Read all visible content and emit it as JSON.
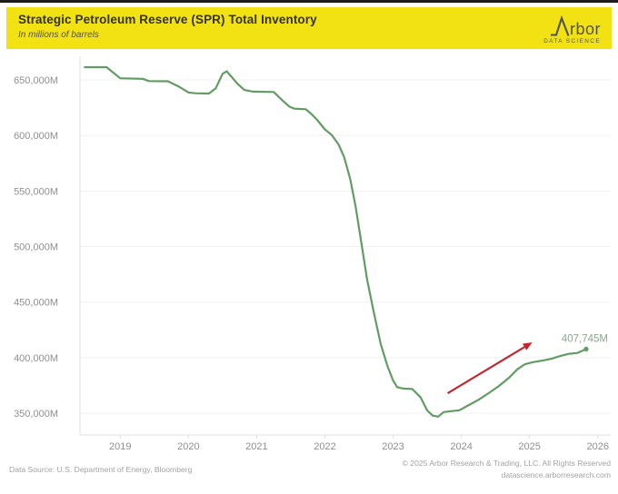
{
  "header": {
    "title": "Strategic Petroleum Reserve (SPR) Total Inventory",
    "subtitle": "In millions of barrels",
    "logo": {
      "brand": "Arbor",
      "text_after_mark": "rbor",
      "tagline": "DATA SCIENCE"
    }
  },
  "footer": {
    "source": "Data Source: U.S. Department of Energy, Bloomberg",
    "copyright": "© 2025 Arbor Research & Trading, LLC. All Rights Reserved",
    "website": "datascience.arborresearch.com"
  },
  "colors": {
    "header_bg": "#f2e214",
    "top_border": "#1c1c1c",
    "line": "#629c62",
    "end_dot": "#629c62",
    "end_label": "#8ca68c",
    "arrow": "#c1272d",
    "axis_text": "#8f8f8f",
    "gridline": "#f1f1f1",
    "axis_line": "#e0e0e0"
  },
  "chart_data": {
    "type": "line",
    "title": "Strategic Petroleum Reserve (SPR) Total Inventory",
    "subtitle": "In millions of barrels",
    "grid": "horizontal",
    "legend": "none",
    "xlim": [
      2018.41,
      2026.19
    ],
    "ylim": [
      330400,
      671300
    ],
    "x_ticks": [
      2019,
      2020,
      2021,
      2022,
      2023,
      2024,
      2025,
      2026
    ],
    "y_ticks": [
      {
        "value": 350000,
        "label": "350,000M"
      },
      {
        "value": 400000,
        "label": "400,000M"
      },
      {
        "value": 450000,
        "label": "450,000M"
      },
      {
        "value": 500000,
        "label": "500,000M"
      },
      {
        "value": 550000,
        "label": "550,000M"
      },
      {
        "value": 600000,
        "label": "600,000M"
      },
      {
        "value": 650000,
        "label": "650,000M"
      }
    ],
    "series": [
      {
        "name": "SPR Total Inventory",
        "points": [
          [
            2018.48,
            661500
          ],
          [
            2018.8,
            661500
          ],
          [
            2019.0,
            651500
          ],
          [
            2019.33,
            651000
          ],
          [
            2019.42,
            649000
          ],
          [
            2019.7,
            648800
          ],
          [
            2019.86,
            644000
          ],
          [
            2020.0,
            638800
          ],
          [
            2020.1,
            638000
          ],
          [
            2020.3,
            637800
          ],
          [
            2020.4,
            642500
          ],
          [
            2020.5,
            655500
          ],
          [
            2020.56,
            657800
          ],
          [
            2020.63,
            653000
          ],
          [
            2020.72,
            646500
          ],
          [
            2020.82,
            641000
          ],
          [
            2020.95,
            639500
          ],
          [
            2021.25,
            639200
          ],
          [
            2021.38,
            631500
          ],
          [
            2021.48,
            626000
          ],
          [
            2021.55,
            624200
          ],
          [
            2021.72,
            623600
          ],
          [
            2021.8,
            619500
          ],
          [
            2021.88,
            614500
          ],
          [
            2022.0,
            605500
          ],
          [
            2022.1,
            600500
          ],
          [
            2022.2,
            592000
          ],
          [
            2022.28,
            581000
          ],
          [
            2022.37,
            561000
          ],
          [
            2022.45,
            536000
          ],
          [
            2022.53,
            505000
          ],
          [
            2022.62,
            470000
          ],
          [
            2022.72,
            440000
          ],
          [
            2022.82,
            412000
          ],
          [
            2022.92,
            392000
          ],
          [
            2023.0,
            379500
          ],
          [
            2023.06,
            373500
          ],
          [
            2023.15,
            372200
          ],
          [
            2023.28,
            371800
          ],
          [
            2023.4,
            364500
          ],
          [
            2023.5,
            352500
          ],
          [
            2023.58,
            347800
          ],
          [
            2023.66,
            346900
          ],
          [
            2023.74,
            351000
          ],
          [
            2023.85,
            351800
          ],
          [
            2023.97,
            352600
          ],
          [
            2024.1,
            357000
          ],
          [
            2024.25,
            362000
          ],
          [
            2024.4,
            368000
          ],
          [
            2024.55,
            374500
          ],
          [
            2024.7,
            382000
          ],
          [
            2024.82,
            389500
          ],
          [
            2024.93,
            394000
          ],
          [
            2025.05,
            396000
          ],
          [
            2025.2,
            397500
          ],
          [
            2025.32,
            399000
          ],
          [
            2025.45,
            401500
          ],
          [
            2025.58,
            403500
          ],
          [
            2025.7,
            404200
          ],
          [
            2025.83,
            407745
          ]
        ]
      }
    ],
    "annotations": {
      "end_label": {
        "text": "407,745M",
        "x": 2025.83,
        "y": 407745
      },
      "arrow": {
        "x1": 2023.8,
        "y1": 368000,
        "x2": 2025.04,
        "y2": 413800
      }
    }
  }
}
